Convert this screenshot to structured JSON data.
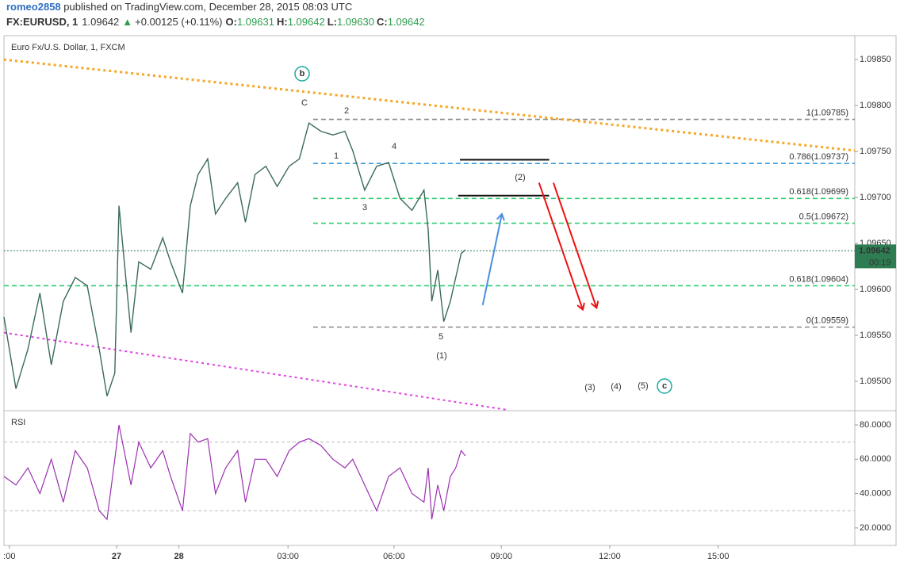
{
  "header": {
    "author": "romeo2858",
    "published": " published on TradingView.com, December 28, 2015 08:03 UTC",
    "symbol": "FX:EURUSD, 1",
    "price": "1.09642",
    "arrow": "▲",
    "change": "+0.00125 (+0.11%)",
    "ohlc": [
      {
        "label": "O:",
        "value": "1.09631"
      },
      {
        "label": "H:",
        "value": "1.09642"
      },
      {
        "label": "L:",
        "value": "1.09630"
      },
      {
        "label": "C:",
        "value": "1.09642"
      }
    ]
  },
  "chart_data": {
    "type": "line",
    "title": "Euro Fx/U.S. Dollar, 1, FXCM",
    "color": "#3a6b57",
    "x": [
      0,
      20,
      40,
      60,
      79,
      99,
      119,
      139,
      159,
      172,
      185,
      192,
      212,
      225,
      245,
      265,
      278,
      298,
      311,
      324,
      340,
      353,
      370,
      390,
      403,
      419,
      437,
      456,
      476,
      493,
      509,
      529,
      549,
      569,
      582,
      602,
      622,
      642,
      661,
      681,
      701,
      708,
      714,
      724,
      734,
      745,
      754,
      763,
      770
    ],
    "values": [
      1.0957,
      1.09492,
      1.09535,
      1.09596,
      1.09518,
      1.09587,
      1.09613,
      1.09604,
      1.09535,
      1.09484,
      1.09509,
      1.09691,
      1.09553,
      1.0963,
      1.09622,
      1.09656,
      1.0963,
      1.09596,
      1.09691,
      1.09725,
      1.09742,
      1.09682,
      1.09699,
      1.09716,
      1.09673,
      1.09725,
      1.09734,
      1.09712,
      1.09734,
      1.09742,
      1.09781,
      1.09772,
      1.09768,
      1.09772,
      1.09751,
      1.09708,
      1.09734,
      1.09738,
      1.09699,
      1.09686,
      1.09708,
      1.09665,
      1.09587,
      1.09621,
      1.09565,
      1.09587,
      1.09613,
      1.09639,
      1.09643
    ],
    "xlim": [
      0,
      1420
    ],
    "xticks": [
      {
        "value": 9,
        "label": ":00"
      },
      {
        "value": 188,
        "label": "27"
      },
      {
        "value": 292,
        "label": "28"
      },
      {
        "value": 474,
        "label": "03:00"
      },
      {
        "value": 651,
        "label": "06:00"
      },
      {
        "value": 830,
        "label": "09:00"
      },
      {
        "value": 1011,
        "label": "12:00"
      },
      {
        "value": 1192,
        "label": "15:00"
      }
    ],
    "ylim": [
      1.09469,
      1.09876
    ],
    "yticks": [
      {
        "value": 1.0985,
        "label": "1.09850"
      },
      {
        "value": 1.098,
        "label": "1.09800"
      },
      {
        "value": 1.0975,
        "label": "1.09750"
      },
      {
        "value": 1.097,
        "label": "1.09700"
      },
      {
        "value": 1.0965,
        "label": "1.09650"
      },
      {
        "value": 1.096,
        "label": "1.09600"
      },
      {
        "value": 1.0955,
        "label": "1.09550"
      },
      {
        "value": 1.095,
        "label": "1.09500"
      }
    ],
    "last": {
      "value": 1.09642,
      "label": "1.09642",
      "countdown": "00:19",
      "color": "#2e7d52"
    },
    "fib": [
      {
        "value": 1.09785,
        "label": "1(1.09785)",
        "color": "#888888",
        "from": 516
      },
      {
        "value": 1.09737,
        "label": "0.786(1.09737)",
        "color": "#3d9be0",
        "from": 516
      },
      {
        "value": 1.09699,
        "label": "0.618(1.09699)",
        "color": "#2ecc71",
        "from": 516
      },
      {
        "value": 1.09672,
        "label": "0.5(1.09672)",
        "color": "#2ecc71",
        "from": 516
      },
      {
        "value": 1.09604,
        "label": "0.618(1.09604)",
        "color": "#2ecc71",
        "from": 0
      },
      {
        "value": 1.09559,
        "label": "0(1.09559)",
        "color": "#888888",
        "from": 516
      }
    ],
    "drawings": [
      {
        "style": "dotted",
        "color": "#f5a623",
        "x": [
          0,
          1420
        ],
        "y": [
          1.0985,
          1.09751
        ]
      },
      {
        "style": "dotted",
        "color": "#e040e0",
        "x": [
          0,
          840
        ],
        "y": [
          1.09553,
          1.09469
        ]
      },
      {
        "style": "solid",
        "color": "#111111",
        "x": [
          761,
          910
        ],
        "y": [
          1.09741,
          1.09741
        ]
      },
      {
        "style": "solid",
        "color": "#111111",
        "x": [
          758,
          910
        ],
        "y": [
          1.09702,
          1.09702
        ]
      },
      {
        "style": "arrow",
        "color": "#4a8fe0",
        "x": [
          799,
          831
        ],
        "y": [
          1.09583,
          1.09682
        ]
      },
      {
        "style": "arrow",
        "color": "#ee1111",
        "x": [
          893,
          966
        ],
        "y": [
          1.09716,
          1.09578
        ]
      },
      {
        "style": "arrow",
        "color": "#ee1111",
        "x": [
          917,
          989
        ],
        "y": [
          1.09716,
          1.0958
        ]
      }
    ],
    "annotations": [
      {
        "text": "b",
        "color": "#1aa8a0",
        "circled": true
      },
      {
        "text": "C",
        "color": "#1aa8a0",
        "circled": false
      },
      {
        "text": "2",
        "color": "#a52a2a",
        "circled": false
      },
      {
        "text": "1",
        "color": "#a52a2a",
        "circled": false
      },
      {
        "text": "4",
        "color": "#a52a2a",
        "circled": false
      },
      {
        "text": "3",
        "color": "#a52a2a",
        "circled": false
      },
      {
        "text": "5",
        "color": "#a52a2a",
        "circled": false
      },
      {
        "text": "(1)",
        "color": "#3c3c9c",
        "circled": false
      },
      {
        "text": "(2)",
        "color": "#3c3c9c",
        "circled": false
      },
      {
        "text": "(3)",
        "color": "#3c3c9c",
        "circled": false
      },
      {
        "text": "(4)",
        "color": "#3c3c9c",
        "circled": false
      },
      {
        "text": "(5)",
        "color": "#3c3c9c",
        "circled": false
      },
      {
        "text": "c",
        "color": "#1aa8a0",
        "circled": true
      }
    ],
    "rsi": {
      "title": "RSI",
      "color": "#9b30b0",
      "values": [
        50,
        45,
        55,
        40,
        60,
        35,
        65,
        55,
        30,
        25,
        60,
        80,
        45,
        70,
        55,
        65,
        50,
        30,
        75,
        70,
        72,
        40,
        55,
        65,
        35,
        60,
        60,
        50,
        65,
        70,
        72,
        68,
        60,
        55,
        60,
        45,
        30,
        50,
        55,
        40,
        35,
        55,
        25,
        45,
        30,
        50,
        55,
        65,
        62
      ],
      "ylim": [
        9.8,
        87.4
      ],
      "yticks": [
        {
          "value": 80,
          "label": "80.0000"
        },
        {
          "value": 60,
          "label": "60.0000"
        },
        {
          "value": 40,
          "label": "40.0000"
        },
        {
          "value": 20,
          "label": "20.0000"
        }
      ],
      "bands": [
        70,
        30
      ]
    }
  }
}
